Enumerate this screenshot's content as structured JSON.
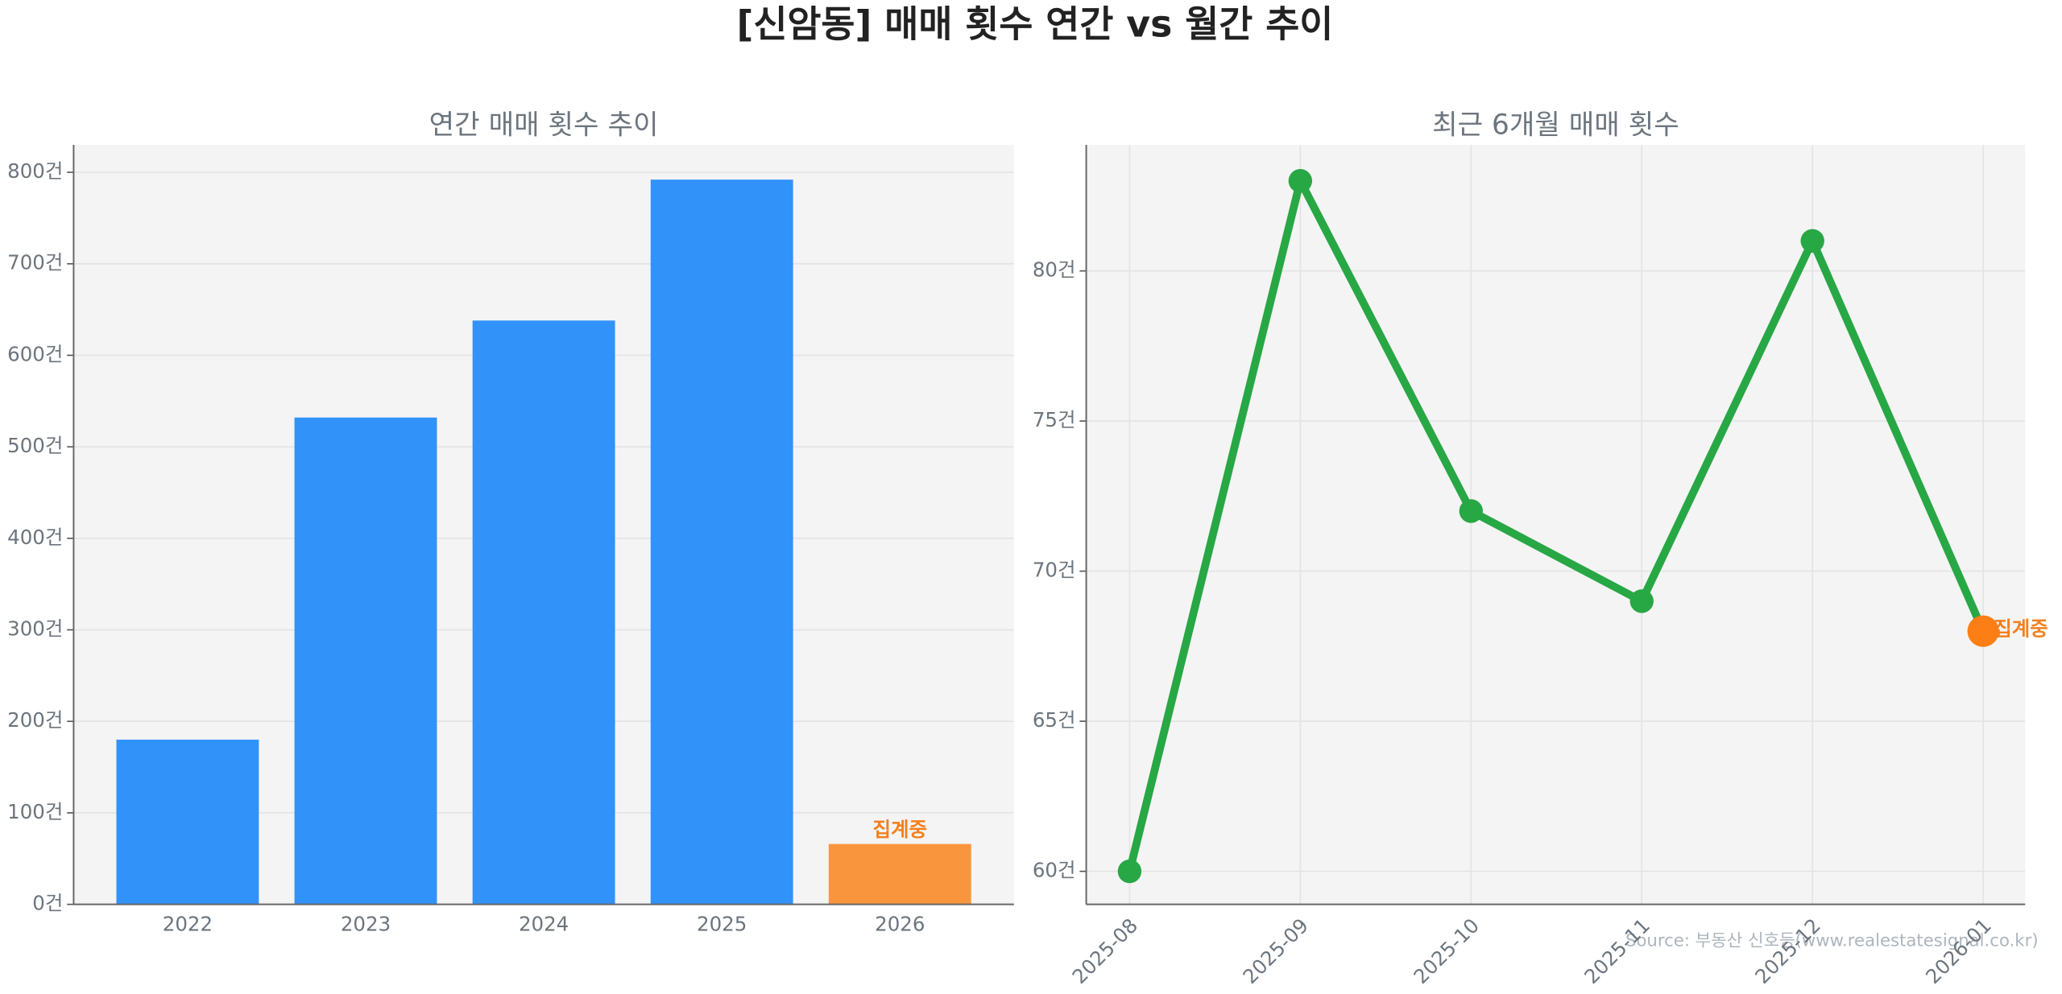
{
  "title": "[신암동] 매매 횟수 연간 vs 월간 추이",
  "source": "Source: 부동산 신호등(www.realestatesignal.co.kr)",
  "chart_data": [
    {
      "type": "bar",
      "title": "연간 매매 횟수 추이",
      "categories": [
        "2022",
        "2023",
        "2024",
        "2025",
        "2026"
      ],
      "values": [
        180,
        532,
        638,
        792,
        66
      ],
      "colors": [
        "#3192fa",
        "#3192fa",
        "#3192fa",
        "#3192fa",
        "#f9963d"
      ],
      "annotation": "집계중",
      "annotation_color": "#f47f1c",
      "ylim": [
        0,
        830
      ],
      "yticks": [
        {
          "value": 0,
          "label": "0건"
        },
        {
          "value": 100,
          "label": "100건"
        },
        {
          "value": 200,
          "label": "200건"
        },
        {
          "value": 300,
          "label": "300건"
        },
        {
          "value": 400,
          "label": "400건"
        },
        {
          "value": 500,
          "label": "500건"
        },
        {
          "value": 600,
          "label": "600건"
        },
        {
          "value": 700,
          "label": "700건"
        },
        {
          "value": 800,
          "label": "800건"
        }
      ],
      "grid": true
    },
    {
      "type": "line",
      "title": "최근 6개월 매매 횟수",
      "categories": [
        "2025-08",
        "2025-09",
        "2025-10",
        "2025-11",
        "2025-12",
        "2026-01"
      ],
      "values": [
        60,
        83,
        72,
        69,
        81,
        68
      ],
      "color": "#28a745",
      "highlight_color": "#fd7e14",
      "annotation": "집계중",
      "annotation_color": "#f47f1c",
      "ylim": [
        58.9,
        84.2
      ],
      "yticks": [
        {
          "value": 60,
          "label": "60건"
        },
        {
          "value": 65,
          "label": "65건"
        },
        {
          "value": 70,
          "label": "70건"
        },
        {
          "value": 75,
          "label": "75건"
        },
        {
          "value": 80,
          "label": "80건"
        }
      ],
      "grid": true
    }
  ]
}
